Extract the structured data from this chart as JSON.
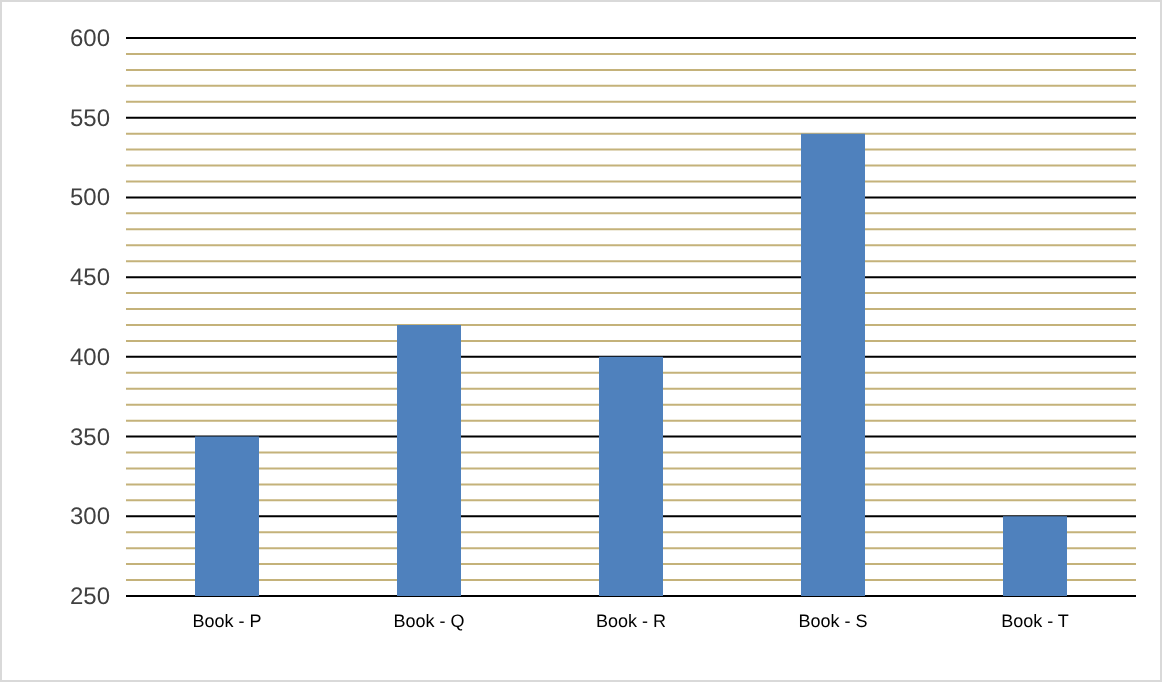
{
  "chart_data": {
    "type": "bar",
    "categories": [
      "Book - P",
      "Book - Q",
      "Book - R",
      "Book - S",
      "Book - T"
    ],
    "values": [
      350,
      420,
      400,
      540,
      300
    ],
    "color": "#4f81bd",
    "ylim": [
      250,
      600
    ],
    "yticks": [
      250,
      {
        "value": 260,
        "label": null
      },
      {
        "value": 270,
        "label": null
      },
      {
        "value": 280,
        "label": null
      },
      {
        "value": 290,
        "label": null
      },
      300,
      {
        "value": 310,
        "label": null
      },
      {
        "value": 320,
        "label": null
      },
      {
        "value": 330,
        "label": null
      },
      {
        "value": 340,
        "label": null
      },
      350,
      {
        "value": 360,
        "label": null
      },
      {
        "value": 370,
        "label": null
      },
      {
        "value": 380,
        "label": null
      },
      {
        "value": 390,
        "label": null
      },
      400,
      {
        "value": 410,
        "label": null
      },
      {
        "value": 420,
        "label": null
      },
      {
        "value": 430,
        "label": null
      },
      {
        "value": 440,
        "label": null
      },
      450,
      {
        "value": 460,
        "label": null
      },
      {
        "value": 470,
        "label": null
      },
      {
        "value": 480,
        "label": null
      },
      {
        "value": 490,
        "label": null
      },
      500,
      {
        "value": 510,
        "label": null
      },
      {
        "value": 520,
        "label": null
      },
      {
        "value": 530,
        "label": null
      },
      {
        "value": 540,
        "label": null
      },
      550,
      {
        "value": 560,
        "label": null
      },
      {
        "value": 570,
        "label": null
      },
      {
        "value": 580,
        "label": null
      },
      {
        "value": 590,
        "label": null
      },
      600
    ],
    "grid": true
  }
}
